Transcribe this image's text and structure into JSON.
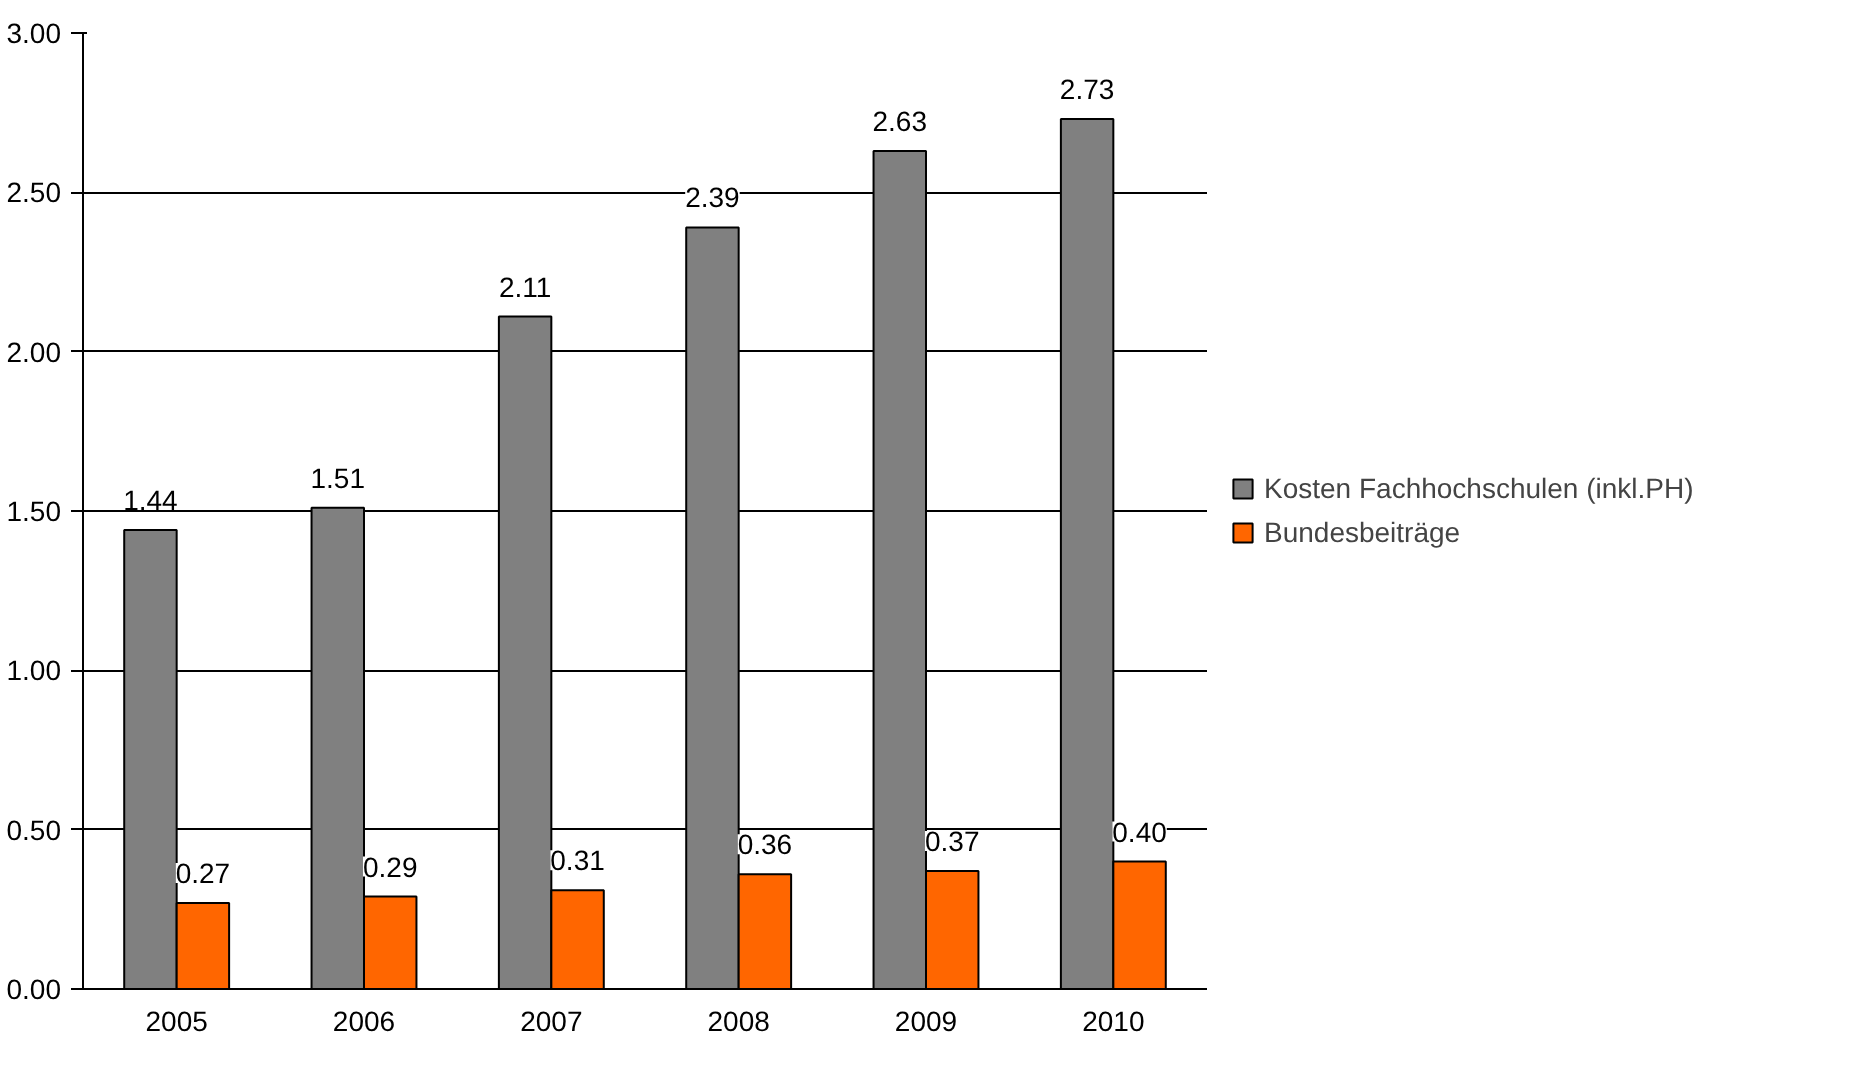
{
  "chart_data": {
    "type": "bar",
    "categories": [
      "2005",
      "2006",
      "2007",
      "2008",
      "2009",
      "2010"
    ],
    "series": [
      {
        "name": "Kosten Fachhochschulen (inkl.PH)",
        "color": "#808080",
        "values": [
          1.44,
          1.51,
          2.11,
          2.39,
          2.63,
          2.73
        ],
        "value_labels": [
          "1.44",
          "1.51",
          "2.11",
          "2.39",
          "2.63",
          "2.73"
        ]
      },
      {
        "name": "Bundesbeiträge",
        "color": "#ff6600",
        "values": [
          0.27,
          0.29,
          0.31,
          0.36,
          0.37,
          0.4
        ],
        "value_labels": [
          "0.27",
          "0.29",
          "0.31",
          "0.36",
          "0.37",
          "0.40"
        ]
      }
    ],
    "ylim": [
      0,
      3
    ],
    "yticks": [
      {
        "value": 0,
        "label": "0.00"
      },
      {
        "value": 0.5,
        "label": "0.50"
      },
      {
        "value": 1,
        "label": "1.00"
      },
      {
        "value": 1.5,
        "label": "1.50"
      },
      {
        "value": 2,
        "label": "2.00"
      },
      {
        "value": 2.5,
        "label": "2.50"
      },
      {
        "value": 3,
        "label": "3.00"
      }
    ],
    "grid": "y",
    "legend": "right"
  }
}
